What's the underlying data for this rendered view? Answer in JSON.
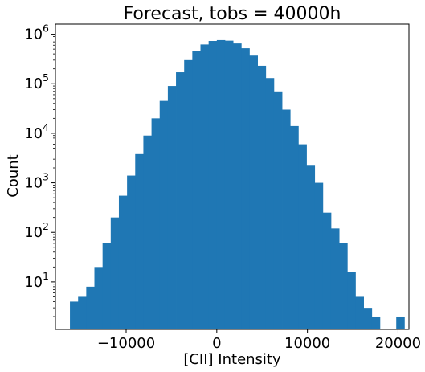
{
  "chart_data": {
    "type": "bar",
    "title": "Forecast, tobs = 40000h",
    "xlabel": "[CII] Intensity",
    "ylabel": "Count",
    "yscale": "log",
    "bar_color": "#1f77b4",
    "xlim": [
      -17800,
      21200
    ],
    "ylim": [
      1.1,
      1600000
    ],
    "xticks": [
      -10000,
      0,
      10000,
      20000
    ],
    "xtick_labels": [
      "−10000",
      "0",
      "10000",
      "20000"
    ],
    "yticks": [
      {
        "value": 10,
        "base": "10",
        "exp": "1"
      },
      {
        "value": 100,
        "base": "10",
        "exp": "2"
      },
      {
        "value": 1000,
        "base": "10",
        "exp": "3"
      },
      {
        "value": 10000,
        "base": "10",
        "exp": "4"
      },
      {
        "value": 100000,
        "base": "10",
        "exp": "5"
      },
      {
        "value": 1000000,
        "base": "10",
        "exp": "6"
      }
    ],
    "bin_width": 900,
    "bin_start": -16200,
    "counts": [
      4,
      5,
      8,
      20,
      60,
      200,
      550,
      1400,
      3800,
      9000,
      20000,
      45000,
      90000,
      170000,
      300000,
      460000,
      620000,
      730000,
      760000,
      740000,
      650000,
      520000,
      370000,
      230000,
      130000,
      70000,
      30000,
      14000,
      6000,
      2300,
      1000,
      250,
      120,
      60,
      16,
      5,
      3,
      2,
      1,
      0,
      2
    ]
  }
}
